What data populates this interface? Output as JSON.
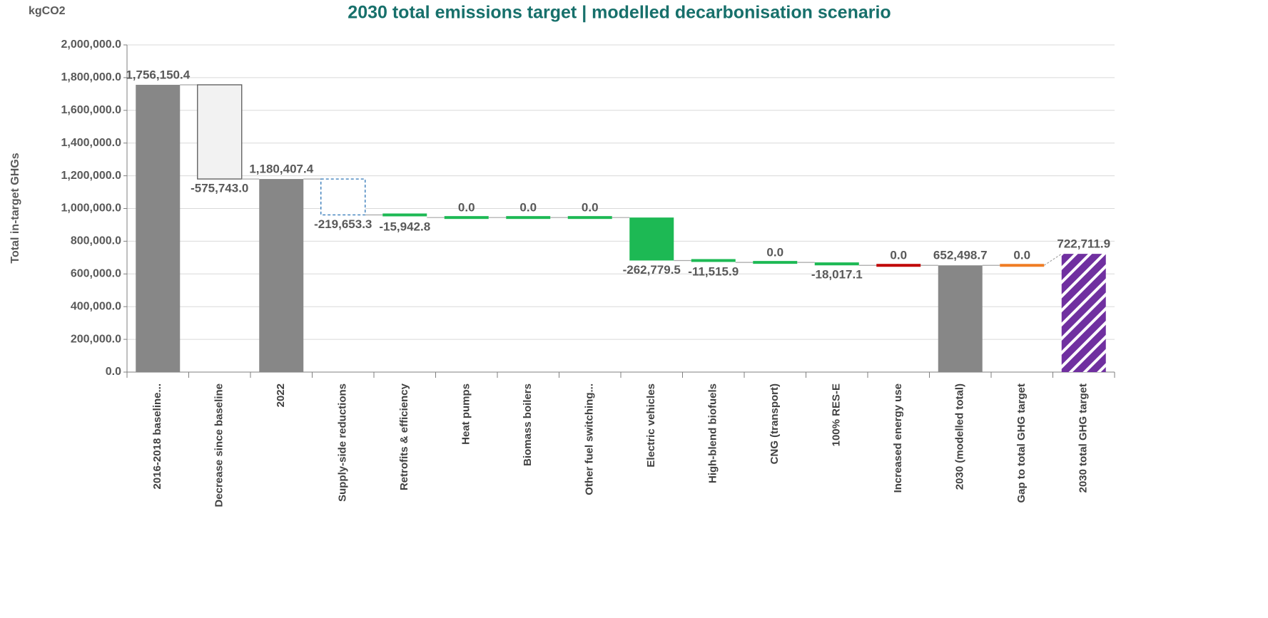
{
  "chart_data": {
    "type": "waterfall",
    "title": "2030 total emissions target | modelled decarbonisation scenario",
    "unit_label": "kgCO2",
    "y_label": "Total in-target GHGs",
    "categories": [
      "2016-2018 baseline...",
      "Decrease since baseline",
      "2022",
      "Supply-side reductions",
      "Retrofits & efficiency",
      "Heat pumps",
      "Biomass boilers",
      "Other fuel switching...",
      "Electric vehicles",
      "High-blend biofuels",
      "CNG (transport)",
      "100% RES-E",
      "Increased energy use",
      "2030 (modelled total)",
      "Gap to total GHG target",
      "2030 total GHG target"
    ],
    "values": [
      1756150.4,
      -575743.0,
      1180407.4,
      -219653.3,
      -15942.8,
      0,
      0,
      0,
      -262779.5,
      -11515.9,
      0,
      -18017.1,
      0,
      652498.7,
      0,
      722711.9
    ],
    "value_labels": [
      "1,756,150.4",
      "-575,743.0",
      "1,180,407.4",
      "-219,653.3",
      "-15,942.8",
      "0.0",
      "0.0",
      "0.0",
      "-262,779.5",
      "-11,515.9",
      "0.0",
      "-18,017.1",
      "0.0",
      "652,498.7",
      "0.0",
      "722,711.9"
    ],
    "measures": [
      "total",
      "relative",
      "total",
      "relative",
      "relative",
      "relative",
      "relative",
      "relative",
      "relative",
      "relative",
      "relative",
      "relative",
      "relative",
      "total",
      "relative",
      "total"
    ],
    "colors": [
      "#878787",
      "#f2f2f2",
      "#878787",
      "#ffffff",
      "#1db954",
      "#1db954",
      "#1db954",
      "#1db954",
      "#1db954",
      "#1db954",
      "#1db954",
      "#1db954",
      "#c00000",
      "#878787",
      "#f07c24",
      "#7030a0"
    ],
    "edge_colors": [
      null,
      "#595959",
      null,
      "#2e75b6",
      null,
      null,
      null,
      null,
      null,
      null,
      null,
      null,
      null,
      null,
      null,
      null
    ],
    "styles": [
      "solid",
      "solid",
      "solid",
      "dashed",
      "solid",
      "solid",
      "solid",
      "solid",
      "solid",
      "solid",
      "solid",
      "solid",
      "solid",
      "solid",
      "solid",
      "hatched"
    ],
    "ylim": [
      0,
      2000000
    ],
    "yticks": [
      {
        "value": 0,
        "label": "0.0"
      },
      {
        "value": 200000,
        "label": "200,000.0"
      },
      {
        "value": 400000,
        "label": "400,000.0"
      },
      {
        "value": 600000,
        "label": "600,000.0"
      },
      {
        "value": 800000,
        "label": "800,000.0"
      },
      {
        "value": 1000000,
        "label": "1,000,000.0"
      },
      {
        "value": 1200000,
        "label": "1,200,000.0"
      },
      {
        "value": 1400000,
        "label": "1,400,000.0"
      },
      {
        "value": 1600000,
        "label": "1,600,000.0"
      },
      {
        "value": 1800000,
        "label": "1,800,000.0"
      },
      {
        "value": 2000000,
        "label": "2,000,000.0"
      }
    ],
    "grid": true
  }
}
